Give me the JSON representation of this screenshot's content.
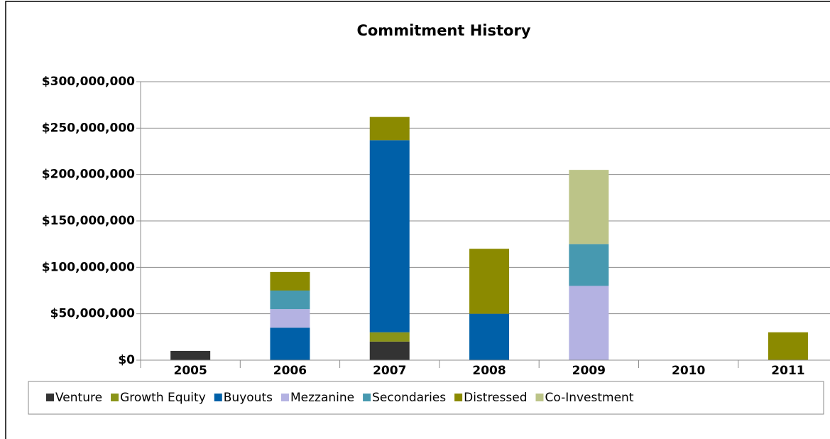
{
  "chart_data": {
    "type": "stacked_bar",
    "title": "Commitment History",
    "categories": [
      "2005",
      "2006",
      "2007",
      "2008",
      "2009",
      "2010",
      "2011"
    ],
    "series": [
      {
        "name": "Venture",
        "color": "#333333",
        "values": [
          10000000,
          null,
          20000000,
          null,
          null,
          null,
          null
        ]
      },
      {
        "name": "Growth Equity",
        "color": "#8a9418",
        "values": [
          null,
          null,
          10000000,
          null,
          null,
          null,
          null
        ]
      },
      {
        "name": "Buyouts",
        "color": "#0060a8",
        "values": [
          null,
          35000000,
          207000000,
          50000000,
          null,
          null,
          null
        ]
      },
      {
        "name": "Mezzanine",
        "color": "#b4b2e2",
        "values": [
          null,
          20000000,
          null,
          null,
          80000000,
          null,
          null
        ]
      },
      {
        "name": "Secondaries",
        "color": "#4799b0",
        "values": [
          null,
          20000000,
          null,
          null,
          45000000,
          null,
          null
        ]
      },
      {
        "name": "Distressed",
        "color": "#8b8a00",
        "values": [
          null,
          20000000,
          25000000,
          70000000,
          null,
          null,
          30000000
        ]
      },
      {
        "name": "Co-Investment",
        "color": "#bcc488",
        "values": [
          null,
          null,
          null,
          null,
          80000000,
          null,
          null
        ]
      }
    ],
    "ylim": [
      0,
      300000000
    ],
    "yticks": [
      {
        "value": 0,
        "label": "$0"
      },
      {
        "value": 50000000,
        "label": "$50,000,000"
      },
      {
        "value": 100000000,
        "label": "$100,000,000"
      },
      {
        "value": 150000000,
        "label": "$150,000,000"
      },
      {
        "value": 200000000,
        "label": "$200,000,000"
      },
      {
        "value": 250000000,
        "label": "$250,000,000"
      },
      {
        "value": 300000000,
        "label": "$300,000,000"
      }
    ],
    "grid": true,
    "legend": "bottom"
  }
}
